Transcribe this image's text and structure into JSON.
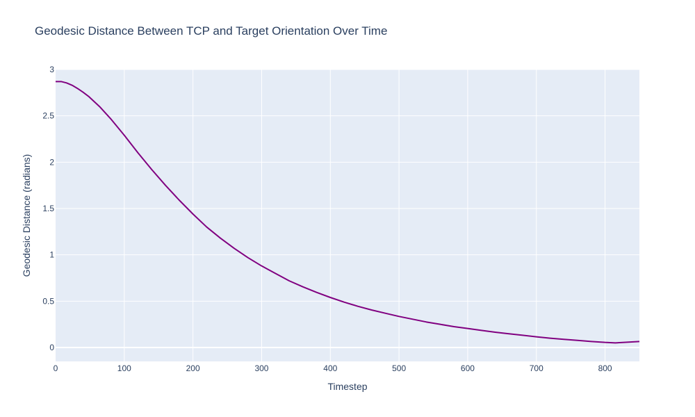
{
  "chart_data": {
    "type": "line",
    "title": "Geodesic Distance Between TCP and Target Orientation Over Time",
    "xlabel": "Timestep",
    "ylabel": "Geodesic Distance (radians)",
    "xlim": [
      0,
      850
    ],
    "ylim": [
      -0.15,
      3.0
    ],
    "xticks": [
      0,
      100,
      200,
      300,
      400,
      500,
      600,
      700,
      800
    ],
    "yticks": [
      0,
      0.5,
      1,
      1.5,
      2,
      2.5,
      3
    ],
    "grid": true,
    "legend": "none",
    "colors": {
      "plot_bg": "#e5ecf6",
      "grid": "#ffffff",
      "line": "#800080",
      "text": "#2a3f5f"
    },
    "series": [
      {
        "x": [
          0,
          8,
          16,
          24,
          32,
          40,
          48,
          64,
          80,
          100,
          120,
          140,
          160,
          180,
          200,
          220,
          240,
          260,
          280,
          300,
          320,
          340,
          360,
          380,
          400,
          420,
          440,
          460,
          480,
          500,
          520,
          540,
          560,
          580,
          600,
          620,
          640,
          660,
          680,
          700,
          720,
          740,
          760,
          780,
          800,
          815,
          830,
          850
        ],
        "y": [
          2.87,
          2.87,
          2.855,
          2.83,
          2.795,
          2.755,
          2.71,
          2.6,
          2.47,
          2.29,
          2.1,
          1.92,
          1.75,
          1.59,
          1.44,
          1.3,
          1.18,
          1.07,
          0.97,
          0.88,
          0.8,
          0.72,
          0.655,
          0.595,
          0.54,
          0.49,
          0.445,
          0.405,
          0.37,
          0.335,
          0.305,
          0.275,
          0.25,
          0.225,
          0.205,
          0.185,
          0.165,
          0.148,
          0.132,
          0.115,
          0.1,
          0.088,
          0.077,
          0.065,
          0.055,
          0.05,
          0.056,
          0.065
        ]
      }
    ]
  }
}
